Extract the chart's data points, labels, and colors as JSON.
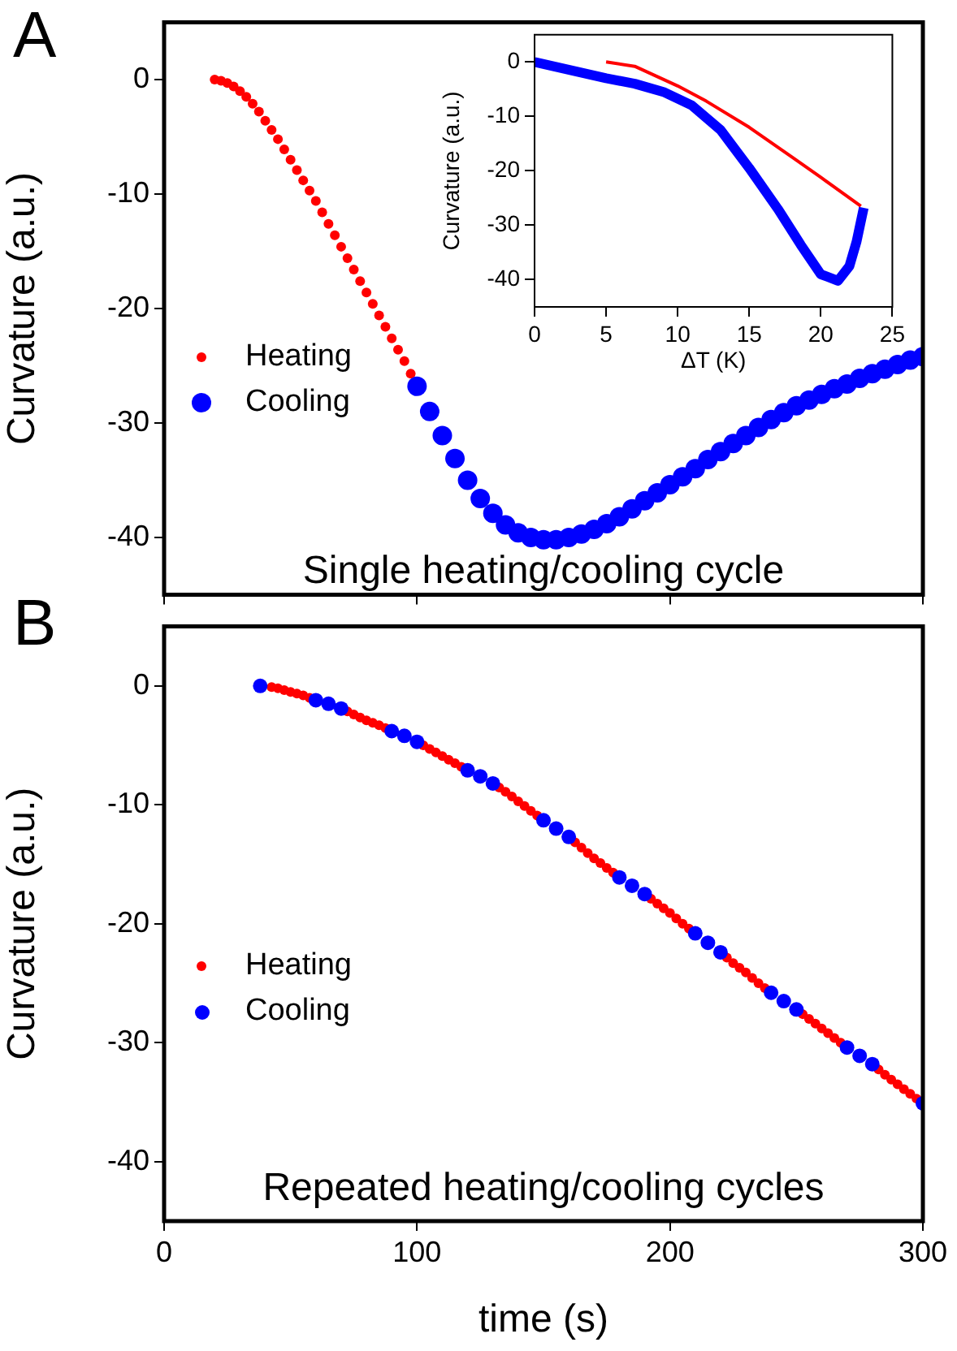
{
  "chart_data": [
    {
      "type": "scatter",
      "ylabel": "Curvature (a.u.)",
      "annotations": [
        "A",
        "Single heating/cooling cycle"
      ],
      "xlim": [
        0,
        300
      ],
      "xticks": [
        0,
        100,
        200,
        300
      ],
      "ylim": [
        -45,
        5
      ],
      "yticks": [
        0,
        -10,
        -20,
        -30,
        -40
      ],
      "tick_labels": "y",
      "legend": "left",
      "marker": "circle",
      "series": [
        {
          "name": "Heating",
          "color": "#ff0000",
          "x": [
            20,
            22.5,
            25,
            27.5,
            30,
            32.5,
            35,
            37.5,
            40,
            42.5,
            45,
            47.5,
            50,
            52.5,
            55,
            57.5,
            60,
            62.5,
            65,
            67.5,
            70,
            72.5,
            75,
            77.5,
            80,
            82.5,
            85,
            87.5,
            90,
            92.5,
            95,
            97.5
          ],
          "values": [
            0,
            -0.1,
            -0.3,
            -0.6,
            -1.0,
            -1.5,
            -2.1,
            -2.8,
            -3.6,
            -4.4,
            -5.2,
            -6.1,
            -7.0,
            -7.9,
            -8.8,
            -9.7,
            -10.6,
            -11.6,
            -12.6,
            -13.6,
            -14.6,
            -15.6,
            -16.6,
            -17.6,
            -18.6,
            -19.6,
            -20.6,
            -21.6,
            -22.6,
            -23.6,
            -24.6,
            -25.7
          ]
        },
        {
          "name": "Cooling",
          "color": "#0000ff",
          "x": [
            100,
            105,
            110,
            115,
            120,
            125,
            130,
            135,
            140,
            145,
            150,
            155,
            160,
            165,
            170,
            175,
            180,
            185,
            190,
            195,
            200,
            205,
            210,
            215,
            220,
            225,
            230,
            235,
            240,
            245,
            250,
            255,
            260,
            265,
            270,
            275,
            280,
            285,
            290,
            295,
            300
          ],
          "values": [
            -26.8,
            -29,
            -31.1,
            -33.1,
            -35,
            -36.6,
            -37.9,
            -38.9,
            -39.6,
            -40,
            -40.2,
            -40.2,
            -40,
            -39.7,
            -39.3,
            -38.8,
            -38.2,
            -37.5,
            -36.8,
            -36.1,
            -35.4,
            -34.7,
            -34,
            -33.2,
            -32.5,
            -31.8,
            -31.1,
            -30.4,
            -29.7,
            -29.1,
            -28.5,
            -28,
            -27.5,
            -27,
            -26.6,
            -26.1,
            -25.7,
            -25.3,
            -24.9,
            -24.5,
            -24.2
          ]
        }
      ]
    },
    {
      "type": "line",
      "xlabel": "ΔT (K)",
      "ylabel": "Curvature (a.u.)",
      "xlim": [
        0,
        25
      ],
      "xticks": [
        0,
        5,
        10,
        15,
        20,
        25
      ],
      "ylim": [
        -45,
        5
      ],
      "yticks": [
        0,
        -10,
        -20,
        -30,
        -40
      ],
      "marker": "none",
      "series": [
        {
          "color": "#ff0000",
          "x": [
            5,
            7,
            10,
            12,
            15,
            18,
            20,
            22.8
          ],
          "values": [
            0,
            -0.8,
            -4.4,
            -7.2,
            -12,
            -17.5,
            -21.2,
            -26.5
          ]
        },
        {
          "color": "#0000ff",
          "x": [
            23,
            22.5,
            22,
            21.2,
            20,
            18.6,
            17,
            15,
            13,
            11,
            9,
            7,
            5,
            3,
            0
          ],
          "values": [
            -26.8,
            -33,
            -37.5,
            -40.2,
            -39,
            -33.6,
            -27,
            -19.5,
            -12.5,
            -8,
            -5.5,
            -4,
            -3,
            -1.8,
            0
          ]
        }
      ]
    },
    {
      "type": "scatter",
      "xlabel": "time (s)",
      "ylabel": "Curvature (a.u.)",
      "annotations": [
        "B",
        "Repeated heating/cooling cycles"
      ],
      "xlim": [
        0,
        300
      ],
      "xticks": [
        0,
        100,
        200,
        300
      ],
      "ylim": [
        -45,
        5
      ],
      "yticks": [
        0,
        -10,
        -20,
        -30,
        -40
      ],
      "legend": "left",
      "marker": "circle",
      "series": [
        {
          "name": "Heating",
          "color": "#ff0000",
          "x": [
            42.5,
            45,
            47.5,
            50,
            52.5,
            55,
            57.5,
            72.5,
            75,
            77.5,
            80,
            82.5,
            85,
            87.5,
            102.5,
            105,
            107.5,
            110,
            112.5,
            115,
            117.5,
            132.5,
            135,
            137.5,
            140,
            142.5,
            145,
            147.5,
            162.5,
            165,
            167.5,
            170,
            172.5,
            175,
            177.5,
            192.5,
            195,
            197.5,
            200,
            202.5,
            205,
            207.5,
            222.5,
            225,
            227.5,
            230,
            232.5,
            235,
            237.5,
            252.5,
            255,
            257.5,
            260,
            262.5,
            265,
            267.5,
            282.5,
            285,
            287.5,
            290,
            292.5,
            295,
            297.5
          ],
          "values": [
            -0.1,
            -0.2,
            -0.35,
            -0.5,
            -0.65,
            -0.8,
            -1.0,
            -2.15,
            -2.4,
            -2.65,
            -2.9,
            -3.1,
            -3.3,
            -3.55,
            -5.0,
            -5.3,
            -5.6,
            -5.9,
            -6.2,
            -6.5,
            -6.8,
            -8.55,
            -8.9,
            -9.3,
            -9.7,
            -10.1,
            -10.5,
            -10.9,
            -13.15,
            -13.6,
            -14.05,
            -14.5,
            -14.9,
            -15.3,
            -15.7,
            -17.9,
            -18.3,
            -18.7,
            -19.1,
            -19.55,
            -20,
            -20.4,
            -22.85,
            -23.3,
            -23.7,
            -24.1,
            -24.55,
            -25,
            -25.4,
            -27.6,
            -28,
            -28.4,
            -28.8,
            -29.2,
            -29.6,
            -30,
            -32.25,
            -32.7,
            -33.1,
            -33.5,
            -33.9,
            -34.3,
            -34.7
          ]
        },
        {
          "name": "Cooling",
          "color": "#0000ff",
          "x": [
            38,
            60,
            65,
            70,
            90,
            95,
            100,
            120,
            125,
            130,
            150,
            155,
            160,
            180,
            185,
            190,
            210,
            215,
            220,
            240,
            245,
            250,
            270,
            275,
            280,
            300
          ],
          "values": [
            0,
            -1.2,
            -1.5,
            -1.9,
            -3.8,
            -4.2,
            -4.7,
            -7.1,
            -7.6,
            -8.2,
            -11.3,
            -12,
            -12.7,
            -16.1,
            -16.8,
            -17.5,
            -20.8,
            -21.6,
            -22.4,
            -25.8,
            -26.5,
            -27.2,
            -30.4,
            -31.1,
            -31.8,
            -35.1
          ]
        }
      ]
    }
  ]
}
